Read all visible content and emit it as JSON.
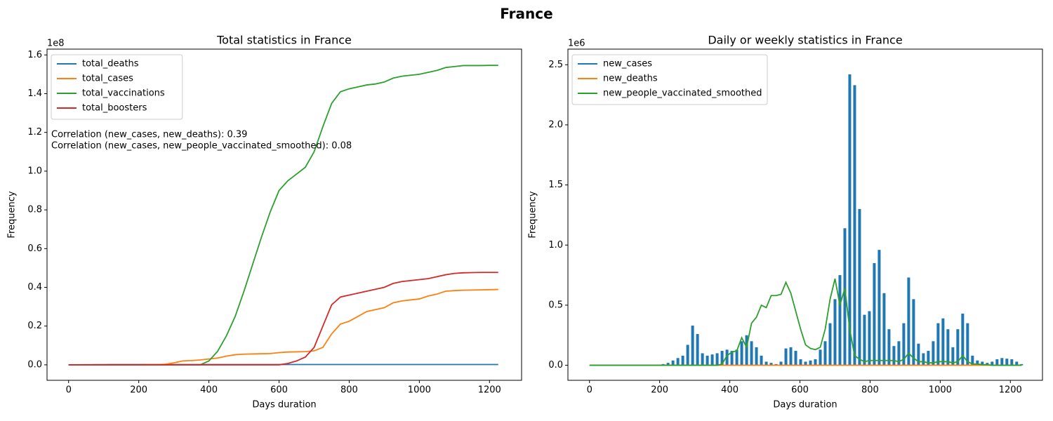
{
  "title": "France",
  "chart_data": [
    {
      "type": "line",
      "title": "Total statistics in France",
      "xlabel": "Days duration",
      "ylabel": "Frequency",
      "y_offset_label": "1e8",
      "annotations": [
        "Correlation (new_cases, new_deaths): 0.39",
        "Correlation (new_cases, new_people_vaccinated_smoothed): 0.08"
      ],
      "legend": "upper left",
      "xlim": [
        -61.5,
        1291.5
      ],
      "xticks": [
        0,
        200,
        400,
        600,
        800,
        1000,
        1200
      ],
      "ylim": [
        -0.08,
        1.63
      ],
      "yticks": [
        {
          "value": 0,
          "label": "0.0"
        },
        0.2,
        0.4,
        0.6,
        0.8,
        {
          "value": 1,
          "label": "1.0"
        },
        1.2,
        1.4,
        1.6
      ],
      "x": [
        0,
        25,
        50,
        75,
        100,
        125,
        150,
        175,
        200,
        225,
        250,
        275,
        300,
        325,
        350,
        375,
        400,
        425,
        450,
        475,
        500,
        525,
        550,
        575,
        600,
        625,
        650,
        675,
        700,
        725,
        750,
        775,
        800,
        825,
        850,
        875,
        900,
        925,
        950,
        975,
        1000,
        1025,
        1050,
        1075,
        1100,
        1125,
        1150,
        1175,
        1200,
        1225
      ],
      "series": [
        {
          "name": "total_deaths",
          "color": "#1f77b4",
          "values": [
            0,
            0,
            0.0005,
            0.001,
            0.0012,
            0.0013,
            0.0014,
            0.0014,
            0.0014,
            0.0014,
            0.0015,
            0.0015,
            0.0015,
            0.0015,
            0.0015,
            0.0015,
            0.0015,
            0.0015,
            0.0015,
            0.0015,
            0.0016,
            0.0016,
            0.0016,
            0.0016,
            0.0016,
            0.0016,
            0.0016,
            0.0016,
            0.0016,
            0.0016,
            0.0016,
            0.0016,
            0.0016,
            0.0016,
            0.0016,
            0.0016,
            0.0016,
            0.0016,
            0.0016,
            0.0016,
            0.0016,
            0.0016,
            0.0016,
            0.0016,
            0.0016,
            0.0016,
            0.0016,
            0.0016,
            0.0016,
            0.0016
          ]
        },
        {
          "name": "total_cases",
          "color": "#ff7f0e",
          "values": [
            0,
            0,
            0,
            0,
            0,
            0,
            0,
            0,
            0,
            0.001,
            0.001,
            0.003,
            0.01,
            0.02,
            0.022,
            0.025,
            0.03,
            0.035,
            0.045,
            0.052,
            0.055,
            0.056,
            0.057,
            0.058,
            0.063,
            0.066,
            0.067,
            0.068,
            0.072,
            0.09,
            0.16,
            0.21,
            0.225,
            0.25,
            0.275,
            0.285,
            0.295,
            0.32,
            0.33,
            0.335,
            0.34,
            0.355,
            0.365,
            0.38,
            0.383,
            0.385,
            0.386,
            0.387,
            0.388,
            0.389
          ]
        },
        {
          "name": "total_vaccinations",
          "color": "#2ca02c",
          "values": [
            0,
            0,
            0,
            0,
            0,
            0,
            0,
            0,
            0,
            0,
            0,
            0,
            0,
            0,
            0,
            0,
            0.02,
            0.07,
            0.15,
            0.25,
            0.38,
            0.52,
            0.66,
            0.79,
            0.9,
            0.95,
            0.985,
            1.02,
            1.1,
            1.23,
            1.35,
            1.41,
            1.425,
            1.435,
            1.445,
            1.45,
            1.46,
            1.48,
            1.49,
            1.495,
            1.5,
            1.51,
            1.52,
            1.535,
            1.54,
            1.545,
            1.545,
            1.545,
            1.546,
            1.546
          ]
        },
        {
          "name": "total_boosters",
          "color": "#d62728",
          "values": [
            0,
            0,
            0,
            0,
            0,
            0,
            0,
            0,
            0,
            0,
            0,
            0,
            0,
            0,
            0,
            0,
            0,
            0,
            0,
            0,
            0,
            0,
            0,
            0,
            0,
            0.007,
            0.02,
            0.04,
            0.09,
            0.2,
            0.31,
            0.35,
            0.36,
            0.37,
            0.38,
            0.39,
            0.4,
            0.42,
            0.43,
            0.435,
            0.44,
            0.445,
            0.455,
            0.465,
            0.472,
            0.475,
            0.476,
            0.477,
            0.477,
            0.477
          ]
        }
      ]
    },
    {
      "type": "line",
      "title": "Daily or weekly statistics in France",
      "xlabel": "Days duration",
      "ylabel": "Frequency",
      "y_offset_label": "1e6",
      "legend": "upper left",
      "xlim": [
        -61.5,
        1291.5
      ],
      "xticks": [
        0,
        200,
        400,
        600,
        800,
        1000,
        1200
      ],
      "ylim": [
        -0.125,
        2.63
      ],
      "yticks": [
        {
          "value": 0,
          "label": "0.0"
        },
        0.5,
        {
          "value": 1,
          "label": "1.0"
        },
        1.5,
        {
          "value": 2,
          "label": "2.0"
        },
        2.5
      ],
      "x": [
        0,
        14,
        28,
        42,
        56,
        70,
        84,
        98,
        112,
        126,
        140,
        154,
        168,
        182,
        196,
        210,
        224,
        238,
        252,
        266,
        280,
        294,
        308,
        322,
        336,
        350,
        364,
        378,
        392,
        406,
        420,
        434,
        448,
        462,
        476,
        490,
        504,
        518,
        532,
        546,
        560,
        574,
        588,
        602,
        616,
        630,
        644,
        658,
        672,
        686,
        700,
        714,
        728,
        742,
        756,
        770,
        784,
        798,
        812,
        826,
        840,
        854,
        868,
        882,
        896,
        910,
        924,
        938,
        952,
        966,
        980,
        994,
        1008,
        1022,
        1036,
        1050,
        1064,
        1078,
        1092,
        1106,
        1120,
        1134,
        1148,
        1162,
        1176,
        1190,
        1204,
        1218,
        1232
      ],
      "series": [
        {
          "name": "new_cases",
          "color": "#1f77b4",
          "type": "bar",
          "values": [
            0,
            0,
            0,
            0,
            0,
            0,
            0,
            0,
            0,
            0,
            0,
            0,
            0,
            0,
            0.005,
            0.01,
            0.02,
            0.04,
            0.06,
            0.08,
            0.17,
            0.33,
            0.26,
            0.1,
            0.08,
            0.09,
            0.1,
            0.12,
            0.13,
            0.12,
            0.13,
            0.2,
            0.25,
            0.2,
            0.15,
            0.08,
            0.03,
            0.02,
            0.01,
            0.03,
            0.14,
            0.15,
            0.12,
            0.05,
            0.03,
            0.04,
            0.05,
            0.13,
            0.2,
            0.35,
            0.55,
            0.75,
            1.14,
            2.42,
            2.33,
            1.3,
            0.42,
            0.45,
            0.85,
            0.96,
            0.6,
            0.3,
            0.16,
            0.2,
            0.35,
            0.73,
            0.55,
            0.18,
            0.1,
            0.12,
            0.2,
            0.35,
            0.39,
            0.3,
            0.15,
            0.3,
            0.43,
            0.35,
            0.08,
            0.04,
            0.03,
            0.02,
            0.03,
            0.05,
            0.06,
            0.055,
            0.05,
            0.03,
            0.01
          ]
        },
        {
          "name": "new_deaths",
          "color": "#ff7f0e",
          "values": [
            0,
            0,
            0.0003,
            0.0003,
            0.0003,
            0.0003,
            0.0003,
            0.0003,
            0.0003,
            0.0003,
            0.0003,
            0.0003,
            0.0003,
            0.0003,
            0.0003,
            0.0003,
            0.0003,
            0.0003,
            0.0003,
            0.0003,
            0.0003,
            0.0003,
            0.0003,
            0.0003,
            0.0003,
            0.0003,
            0.0003,
            0.0003,
            0.0003,
            0.0003,
            0.0003,
            0.0003,
            0.0003,
            0.0003,
            0.0003,
            0.0003,
            0.0003,
            0.0003,
            0.0003,
            0.0003,
            0.0003,
            0.0003,
            0.0003,
            0.0003,
            0.0003,
            0.0003,
            0.0003,
            0.0003,
            0.0003,
            0.0003,
            0.0003,
            0.0003,
            0.0003,
            0.0003,
            0.0003,
            0.0003,
            0.0003,
            0.0003,
            0.0003,
            0.0003,
            0.0003,
            0.0003,
            0.0003,
            0.0003,
            0.0003,
            0.0003,
            0.0003,
            0.0003,
            0.0003,
            0.0003,
            0.0003,
            0.0003,
            0.0003,
            0.0003,
            0.0003,
            0.0003,
            0.0003,
            0.0003,
            0.0003,
            0.0003,
            0.0003,
            0.0003,
            0.0003,
            0.0003,
            0.0003,
            0.0003,
            0.0003,
            0.0003,
            0.0003
          ]
        },
        {
          "name": "new_people_vaccinated_smoothed",
          "color": "#2ca02c",
          "values": [
            0,
            0,
            0,
            0,
            0,
            0,
            0,
            0,
            0,
            0,
            0,
            0,
            0,
            0,
            0,
            0,
            0,
            0,
            0,
            0,
            0,
            0,
            0,
            0,
            0,
            0,
            0,
            0.01,
            0.08,
            0.11,
            0.12,
            0.23,
            0.15,
            0.35,
            0.4,
            0.5,
            0.48,
            0.58,
            0.58,
            0.59,
            0.69,
            0.6,
            0.45,
            0.3,
            0.17,
            0.14,
            0.13,
            0.15,
            0.3,
            0.55,
            0.72,
            0.5,
            0.64,
            0.3,
            0.08,
            0.05,
            0.03,
            0.04,
            0.04,
            0.04,
            0.04,
            0.04,
            0.04,
            0.03,
            0.05,
            0.1,
            0.06,
            0.03,
            0.03,
            0.02,
            0.02,
            0.03,
            0.03,
            0.03,
            0.02,
            0.03,
            0.08,
            0.03,
            0.01,
            0.01,
            0.005,
            0.005,
            0,
            0,
            0,
            0,
            0,
            0,
            0
          ]
        }
      ]
    }
  ]
}
